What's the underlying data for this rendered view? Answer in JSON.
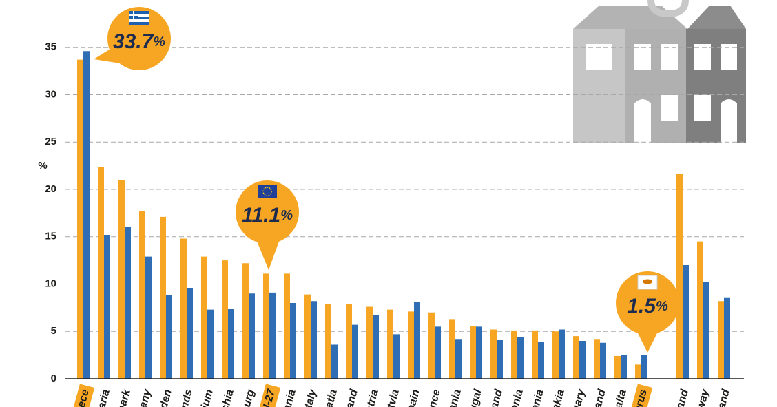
{
  "chart_data": {
    "type": "bar",
    "y_label": "%",
    "categories": [
      "eece",
      "aria",
      "mark",
      "many",
      "eden",
      "rlands",
      "ium",
      "chia",
      "bourg",
      "U-27",
      "ania",
      "Italy",
      "atia",
      "land",
      "stria",
      "tvia",
      "pain",
      "ance",
      "ania",
      "ugal",
      "land",
      "onia",
      "enia",
      "akia",
      "gary",
      "land",
      "alta",
      "prus",
      null,
      "land",
      "way",
      "land"
    ],
    "highlight": [
      0,
      9,
      27
    ],
    "series": [
      {
        "color": "#f6a623",
        "values": [
          33.7,
          22.4,
          21.0,
          17.7,
          17.1,
          14.8,
          12.9,
          12.5,
          12.2,
          11.1,
          11.1,
          8.9,
          7.9,
          7.9,
          7.6,
          7.3,
          7.1,
          7.0,
          6.3,
          5.6,
          5.2,
          5.1,
          5.1,
          5.0,
          4.5,
          4.2,
          2.4,
          1.5,
          null,
          21.6,
          14.5,
          8.2
        ]
      },
      {
        "color": "#2f6db5",
        "values": [
          34.6,
          15.2,
          16.0,
          12.9,
          8.8,
          9.6,
          7.3,
          7.4,
          9.0,
          9.1,
          8.0,
          8.2,
          3.6,
          5.7,
          6.7,
          4.7,
          8.1,
          5.5,
          4.2,
          5.5,
          4.1,
          4.4,
          3.9,
          5.2,
          4.0,
          3.8,
          2.5,
          2.5,
          null,
          12.0,
          10.2,
          8.6
        ]
      }
    ],
    "annotations": [
      "33.7%",
      "11.1%",
      "1.5%"
    ],
    "ylim": [
      0,
      40
    ],
    "yticks": [
      0,
      5,
      10,
      15,
      20,
      25,
      30,
      35
    ],
    "grid": true
  }
}
